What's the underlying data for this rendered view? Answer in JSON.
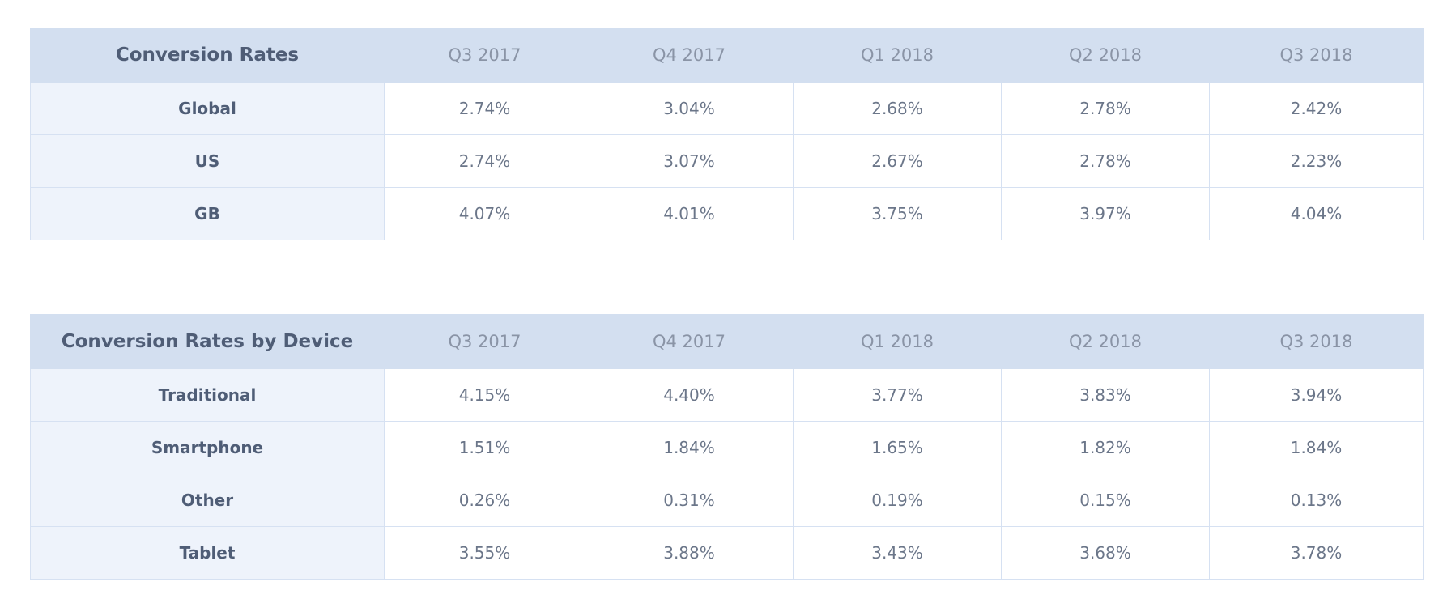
{
  "chart_data": [
    {
      "type": "table",
      "title": "Conversion Rates",
      "columns": [
        "Q3 2017",
        "Q4 2017",
        "Q1 2018",
        "Q2 2018",
        "Q3 2018"
      ],
      "rows": [
        {
          "label": "Global",
          "values": [
            "2.74%",
            "3.04%",
            "2.68%",
            "2.78%",
            "2.42%"
          ]
        },
        {
          "label": "US",
          "values": [
            "2.74%",
            "3.07%",
            "2.67%",
            "2.78%",
            "2.23%"
          ]
        },
        {
          "label": "GB",
          "values": [
            "4.07%",
            "4.01%",
            "3.75%",
            "3.97%",
            "4.04%"
          ]
        }
      ]
    },
    {
      "type": "table",
      "title": "Conversion Rates by Device",
      "columns": [
        "Q3 2017",
        "Q4 2017",
        "Q1 2018",
        "Q2 2018",
        "Q3 2018"
      ],
      "rows": [
        {
          "label": "Traditional",
          "values": [
            "4.15%",
            "4.40%",
            "3.77%",
            "3.83%",
            "3.94%"
          ]
        },
        {
          "label": "Smartphone",
          "values": [
            "1.51%",
            "1.84%",
            "1.65%",
            "1.82%",
            "1.84%"
          ]
        },
        {
          "label": "Other",
          "values": [
            "0.26%",
            "0.31%",
            "0.19%",
            "0.15%",
            "0.13%"
          ]
        },
        {
          "label": "Tablet",
          "values": [
            "3.55%",
            "3.88%",
            "3.43%",
            "3.68%",
            "3.78%"
          ]
        }
      ]
    }
  ]
}
